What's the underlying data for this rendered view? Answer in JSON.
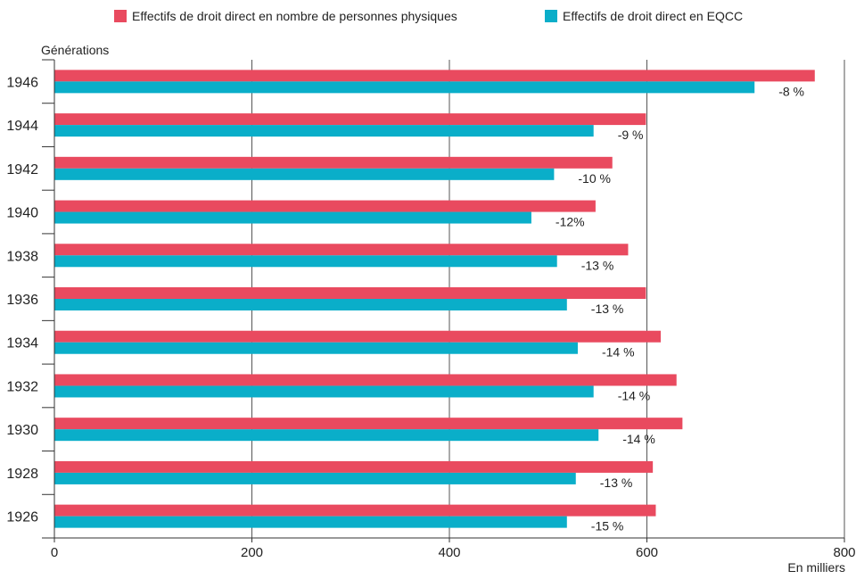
{
  "chart_data": {
    "type": "bar",
    "orientation": "horizontal",
    "ylabel": "Générations",
    "xlabel": "En milliers",
    "xlim": [
      0,
      800
    ],
    "xticks": [
      "0",
      "200",
      "400",
      "600",
      "800"
    ],
    "categories": [
      "1946",
      "1944",
      "1942",
      "1940",
      "1938",
      "1936",
      "1934",
      "1932",
      "1930",
      "1928",
      "1926"
    ],
    "series": [
      {
        "name": "Effectifs de droit direct en nombre de personnes physiques",
        "color": "#E94A5F",
        "values": [
          770,
          599,
          565,
          548,
          581,
          599,
          614,
          630,
          636,
          606,
          609
        ]
      },
      {
        "name": "Effectifs de droit direct en EQCC",
        "color": "#0AAEC9",
        "values": [
          709,
          546,
          506,
          483,
          509,
          519,
          530,
          546,
          551,
          528,
          519
        ]
      }
    ],
    "annotations": [
      "-8 %",
      "-9 %",
      "-10 %",
      "-12%",
      "-13 %",
      "-13 %",
      "-14 %",
      "-14 %",
      "-14 %",
      "-13 %",
      "-15 %"
    ],
    "grid": true,
    "legend_position": "top"
  }
}
